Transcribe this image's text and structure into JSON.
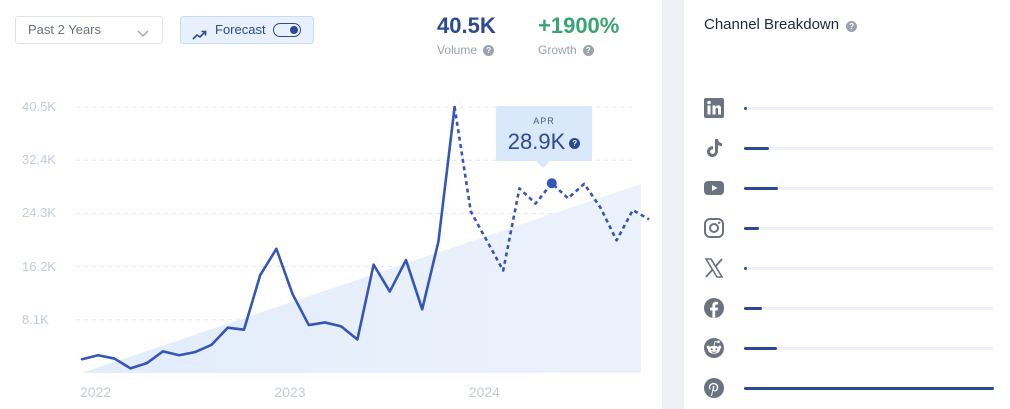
{
  "controls": {
    "period": "Past 2 Years",
    "forecast_label": "Forecast",
    "forecast_on": true
  },
  "stats": {
    "volume": {
      "value": "40.5K",
      "label": "Volume"
    },
    "growth": {
      "value": "+1900%",
      "label": "Growth",
      "color": "#3aa374"
    }
  },
  "tooltip": {
    "month": "APR",
    "value": "28.9K"
  },
  "chart_data": {
    "type": "line",
    "x_ticks": [
      "2022",
      "2023",
      "2024"
    ],
    "y_ticks": [
      "8.1K",
      "16.2K",
      "24.3K",
      "32.4K",
      "40.5K"
    ],
    "ylim": [
      0,
      40500
    ],
    "xlim": [
      0,
      34.5
    ],
    "grid": true,
    "series": [
      {
        "style": "solid",
        "color": "#3556b8",
        "values": [
          2100,
          2700,
          2200,
          700,
          1500,
          3300,
          2700,
          3200,
          4300,
          6900,
          6600,
          14900,
          18900,
          12000,
          7300,
          7700,
          7100,
          5100,
          16500,
          12400,
          17200,
          9700,
          20000,
          40500
        ]
      },
      {
        "style": "dotted",
        "color": "#3556b8",
        "values": [
          40500,
          24600,
          20100,
          15600,
          28100,
          25800,
          28900,
          26600,
          28800,
          25200,
          20200,
          24800,
          23400
        ]
      }
    ],
    "trend_band": {
      "start": 0,
      "end": 28800
    }
  },
  "channels": {
    "title": "Channel Breakdown",
    "items": [
      {
        "name": "LinkedIn",
        "icon": "linkedin-icon",
        "share": 0.01
      },
      {
        "name": "TikTok",
        "icon": "tiktok-icon",
        "share": 0.1
      },
      {
        "name": "YouTube",
        "icon": "youtube-icon",
        "share": 0.135
      },
      {
        "name": "Instagram",
        "icon": "instagram-icon",
        "share": 0.06
      },
      {
        "name": "X",
        "icon": "x-icon",
        "share": 0.01
      },
      {
        "name": "Facebook",
        "icon": "facebook-icon",
        "share": 0.07
      },
      {
        "name": "Reddit",
        "icon": "reddit-icon",
        "share": 0.13
      },
      {
        "name": "Pinterest",
        "icon": "pinterest-icon",
        "share": 1.0
      }
    ]
  }
}
